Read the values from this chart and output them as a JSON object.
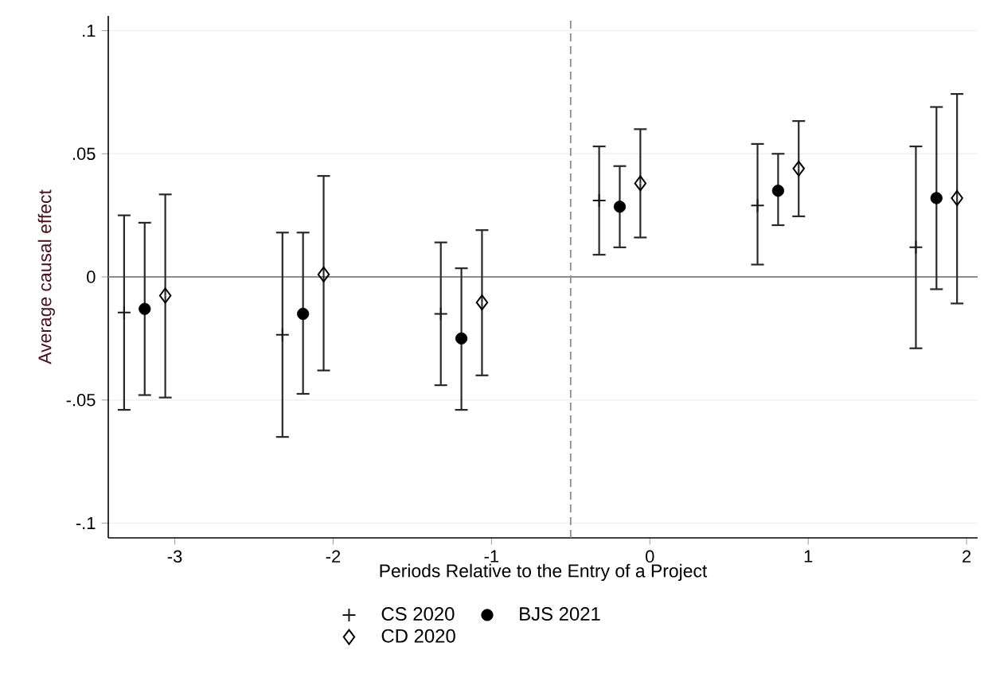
{
  "chart_data": {
    "type": "scatter",
    "xlabel": "Periods Relative to the Entry of a Project",
    "ylabel": "Average causal effect",
    "xlim": [
      -3.42,
      2.07
    ],
    "xticks": [
      -3,
      -2,
      -1,
      0,
      1,
      2
    ],
    "ylim": [
      -0.106,
      0.106
    ],
    "yticks": [
      {
        "value": -0.1,
        "label": "-.1"
      },
      {
        "value": -0.05,
        "label": "-.05"
      },
      {
        "value": 0,
        "label": "0"
      },
      {
        "value": 0.05,
        "label": ".05"
      },
      {
        "value": 0.1,
        "label": ".1"
      }
    ],
    "grid": "y",
    "legend": "bottom",
    "ref_lines": [
      {
        "axis": "y",
        "value": 0,
        "color": "#8c8c8c",
        "line_style": "solid"
      },
      {
        "axis": "x",
        "value": -0.5,
        "color": "#8c8c8c",
        "line_style": "dashed"
      }
    ],
    "series": [
      {
        "name": "CS 2020",
        "color": "#1a1a1a",
        "marker": "cross",
        "x": [
          -3.32,
          -2.32,
          -1.32,
          -0.32,
          0.68,
          1.68
        ],
        "values": [
          -0.0145,
          -0.0235,
          -0.015,
          0.031,
          0.029,
          0.012
        ],
        "errors": [
          [
            -0.054,
            0.025
          ],
          [
            -0.065,
            0.018
          ],
          [
            -0.044,
            0.014
          ],
          [
            0.009,
            0.053
          ],
          [
            0.005,
            0.054
          ],
          [
            -0.029,
            0.053
          ]
        ]
      },
      {
        "name": "BJS 2021",
        "color": "#000000",
        "marker": "circle",
        "x": [
          -3.19,
          -2.19,
          -1.19,
          -0.19,
          0.81,
          1.81
        ],
        "values": [
          -0.013,
          -0.015,
          -0.025,
          0.0285,
          0.035,
          0.032
        ],
        "errors": [
          [
            -0.048,
            0.022
          ],
          [
            -0.0475,
            0.018
          ],
          [
            -0.054,
            0.0035
          ],
          [
            0.012,
            0.045
          ],
          [
            0.021,
            0.05
          ],
          [
            -0.005,
            0.069
          ]
        ]
      },
      {
        "name": "CD 2020",
        "color": "#000000",
        "marker": "diamond",
        "x": [
          -3.06,
          -2.06,
          -1.06,
          -0.06,
          0.94,
          1.94
        ],
        "values": [
          -0.0076,
          0.001,
          -0.0104,
          0.038,
          0.044,
          0.032
        ],
        "errors": [
          [
            -0.049,
            0.0335
          ],
          [
            -0.038,
            0.041
          ],
          [
            -0.04,
            0.019
          ],
          [
            0.016,
            0.06
          ],
          [
            0.0246,
            0.0633
          ],
          [
            -0.0108,
            0.0743
          ]
        ]
      }
    ]
  }
}
